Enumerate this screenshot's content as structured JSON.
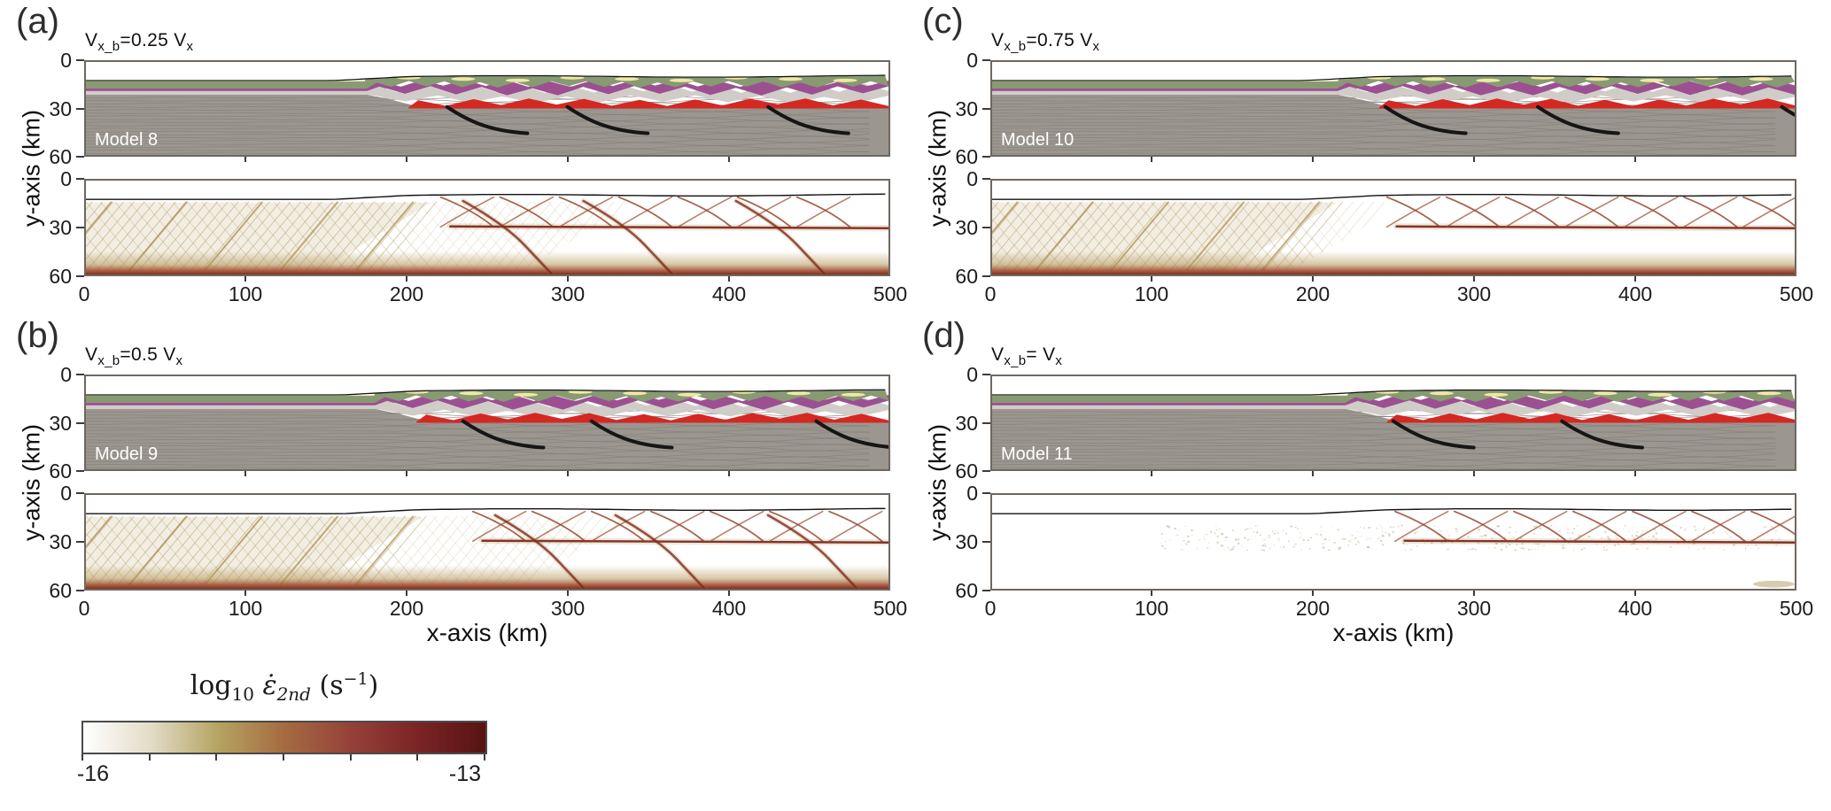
{
  "figure": {
    "kind": "numerical-model-cross-sections",
    "rows": 2,
    "cols": 2
  },
  "chart_data": {
    "type": "heatmap",
    "x_axis": {
      "label": "x-axis (km)",
      "range": [
        0,
        500
      ],
      "ticks": [
        0,
        100,
        200,
        300,
        400,
        500
      ]
    },
    "y_axis": {
      "label": "y-axis (km)",
      "range": [
        0,
        60
      ],
      "ticks": [
        0,
        30,
        60
      ],
      "inverted": true
    },
    "colorbar": {
      "label_parts": {
        "f1": "log",
        "s1": "10",
        "f2": " ε̇",
        "s2": "2nd",
        "f3": " (s",
        "sup": "−1",
        "f4": ")"
      },
      "min": -16,
      "max": -13,
      "min_label": "-16",
      "max_label": "-13",
      "tick_count": 7,
      "stops": [
        "#ffffff",
        "#e3dcc8",
        "#b5a462",
        "#a56b40",
        "#95413a",
        "#7a2425",
        "#581313"
      ]
    },
    "panels": [
      {
        "id": "a",
        "letter": "(a)",
        "title": {
          "v1": "V",
          "s1": "x_b",
          "mid": "=0.25 ",
          "v2": "V",
          "s2": "x"
        },
        "model": "Model 8",
        "deform_start": 185,
        "faults": [
          225,
          300,
          425
        ],
        "hatch_dense": 185,
        "hatch_sparse": 300,
        "network_start": 215,
        "deep_curves": true,
        "bottom_band": true,
        "speckles": false
      },
      {
        "id": "b",
        "letter": "(b)",
        "title": {
          "v1": "V",
          "s1": "x_b",
          "mid": "=0.5 ",
          "v2": "V",
          "s2": "x"
        },
        "model": "Model 9",
        "deform_start": 190,
        "faults": [
          235,
          315,
          455
        ],
        "hatch_dense": 180,
        "hatch_sparse": 300,
        "network_start": 235,
        "deep_curves": true,
        "bottom_band": true,
        "speckles": false
      },
      {
        "id": "c",
        "letter": "(c)",
        "title": {
          "v1": "V",
          "s1": "x_b",
          "mid": "=0.75 ",
          "v2": "V",
          "s2": "x"
        },
        "model": "Model 10",
        "deform_start": 225,
        "faults": [
          245,
          340,
          492
        ],
        "hatch_dense": 185,
        "hatch_sparse": 215,
        "network_start": 240,
        "deep_curves": false,
        "bottom_band": true,
        "speckles": false
      },
      {
        "id": "d",
        "letter": "(d)",
        "title": {
          "v1": "V",
          "s1": "x_b",
          "mid": "= ",
          "v2": "V",
          "s2": "x"
        },
        "model": "Model 11",
        "deform_start": 230,
        "faults": [
          250,
          355
        ],
        "hatch_dense": 0,
        "hatch_sparse": 0,
        "network_start": 245,
        "deep_curves": false,
        "bottom_band": false,
        "speckles": true
      }
    ],
    "layer_colors": {
      "mantle": "#9b9790",
      "mantle_stripe": "#868279",
      "green": "#879a71",
      "purple": "#9c5092",
      "light_gray": "#d0cdc8",
      "red": "#d42823",
      "yellow": "#f3eda5",
      "fault": "#161616",
      "frame": "#6e6760",
      "strain_hatch": "#b29a5e",
      "strain_shear": "#8f3c22"
    }
  }
}
